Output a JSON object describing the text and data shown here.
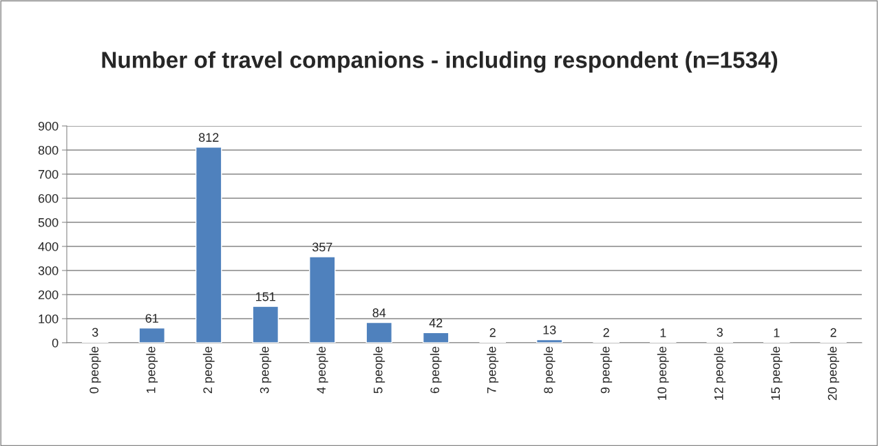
{
  "chart_data": {
    "type": "bar",
    "title": "Number of travel companions - including respondent (n=1534)",
    "categories": [
      "0 people",
      "1 people",
      "2 people",
      "3 people",
      "4 people",
      "5 people",
      "6 people",
      "7 people",
      "8 people",
      "9 people",
      "10 people",
      "12 people",
      "15 people",
      "20 people"
    ],
    "values": [
      3,
      61,
      812,
      151,
      357,
      84,
      42,
      2,
      13,
      2,
      1,
      3,
      1,
      2
    ],
    "color": "#4f81bd",
    "ylim": [
      0,
      900
    ],
    "yticks": [
      0,
      100,
      200,
      300,
      400,
      500,
      600,
      700,
      800,
      900
    ],
    "grid": "y",
    "data_labels": true
  }
}
